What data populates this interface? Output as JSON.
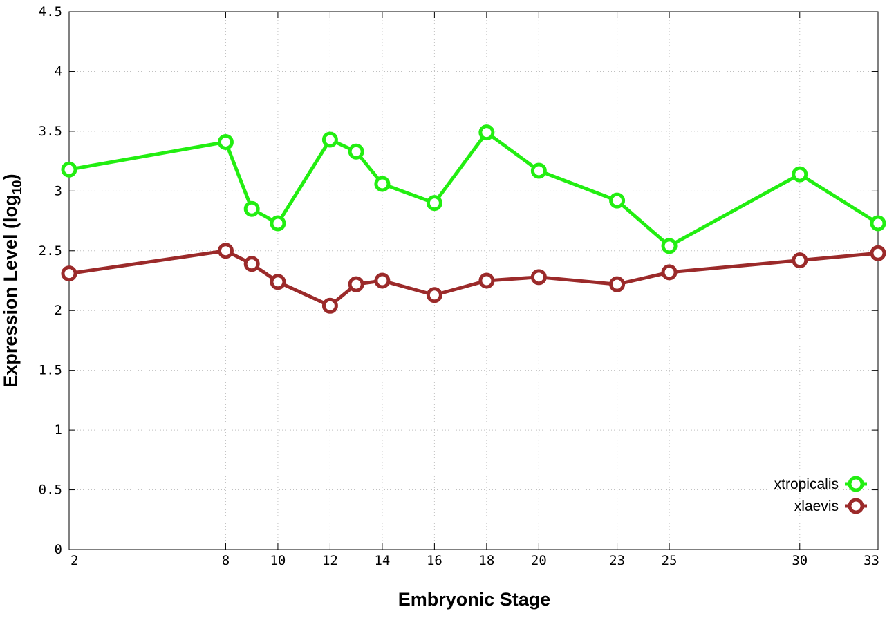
{
  "chart_data": {
    "type": "line",
    "xlabel": "Embryonic Stage",
    "ylabel_main": "Expression Level (log",
    "ylabel_sub": "10",
    "ylabel_close": ")",
    "xlim": [
      2,
      33
    ],
    "ylim": [
      0,
      4.5
    ],
    "x_ticks": [
      2,
      8,
      10,
      12,
      14,
      16,
      18,
      20,
      23,
      25,
      30,
      33
    ],
    "y_ticks": [
      0,
      0.5,
      1,
      1.5,
      2,
      2.5,
      3,
      3.5,
      4,
      4.5
    ],
    "grid": true,
    "legend_position": "bottom-right",
    "series": [
      {
        "name": "xtropicalis",
        "color": "#22ee11",
        "x": [
          2,
          8,
          9,
          10,
          12,
          13,
          14,
          16,
          18,
          20,
          23,
          25,
          30,
          33
        ],
        "y": [
          3.18,
          3.41,
          2.85,
          2.73,
          3.43,
          3.33,
          3.06,
          2.9,
          3.49,
          3.17,
          2.92,
          2.54,
          3.14,
          2.73
        ]
      },
      {
        "name": "xlaevis",
        "color": "#9b2a2a",
        "x": [
          2,
          8,
          9,
          10,
          12,
          13,
          14,
          16,
          18,
          20,
          23,
          25,
          30,
          33
        ],
        "y": [
          2.31,
          2.5,
          2.39,
          2.24,
          2.04,
          2.22,
          2.25,
          2.13,
          2.25,
          2.28,
          2.22,
          2.32,
          2.42,
          2.48
        ]
      }
    ]
  }
}
